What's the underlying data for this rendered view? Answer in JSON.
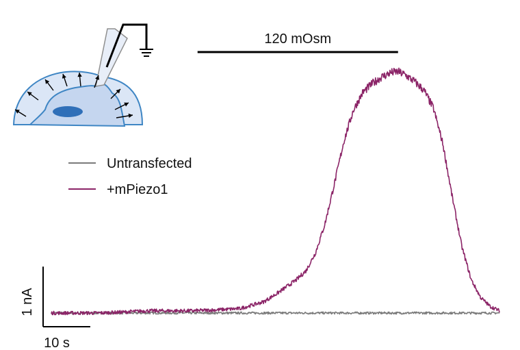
{
  "chart_data": {
    "type": "line",
    "title": "",
    "xlabel": "",
    "ylabel": "",
    "axes_visible": false,
    "grid": false,
    "legend_placement": "upper-left",
    "x_units": "s",
    "y_units": "nA",
    "xlim": [
      0,
      95
    ],
    "ylim": [
      -0.2,
      5.6
    ],
    "scale_bar": {
      "x_value": 10,
      "x_label": "10 s",
      "y_value": 1,
      "y_label": "1 nA"
    },
    "stimulus": {
      "label": "120 mOsm",
      "start": 31,
      "end": 73.5
    },
    "series": [
      {
        "name": "Untransfected",
        "color": "#7a7a7a",
        "x": [
          0,
          10,
          20,
          30,
          40,
          50,
          60,
          70,
          80,
          95
        ],
        "y": [
          0,
          0,
          0,
          0,
          0,
          0,
          0,
          0,
          0,
          0
        ]
      },
      {
        "name": "+mPiezo1",
        "color": "#8b2467",
        "x": [
          0,
          5,
          10,
          15,
          20,
          25,
          30,
          35,
          40,
          45,
          48,
          50,
          52,
          54,
          56,
          58,
          60,
          62,
          64,
          66,
          68,
          70,
          72,
          73.5,
          75,
          77,
          79,
          81,
          83,
          85,
          87,
          89,
          91,
          93,
          95
        ],
        "y": [
          0,
          0,
          0,
          0.02,
          0.05,
          0.05,
          0.05,
          0.07,
          0.1,
          0.25,
          0.45,
          0.6,
          0.75,
          0.95,
          1.35,
          2.0,
          2.9,
          3.85,
          4.55,
          4.95,
          5.15,
          5.3,
          5.4,
          5.42,
          5.35,
          5.2,
          5.0,
          4.6,
          3.8,
          2.6,
          1.5,
          0.75,
          0.35,
          0.15,
          0.05
        ]
      }
    ]
  },
  "legend": {
    "items": [
      {
        "label": "Untransfected",
        "color": "#7a7a7a"
      },
      {
        "label": "+mPiezo1",
        "color": "#8b2467"
      }
    ]
  },
  "colors": {
    "cell_fill": "#c5d6ef",
    "cell_stroke": "#3f86c4",
    "nucleus": "#2f6fb8",
    "bar": "#000000"
  },
  "icons": {
    "cell_schematic": "patch-clamp-swelling-cell-icon",
    "ground": "ground-icon"
  }
}
